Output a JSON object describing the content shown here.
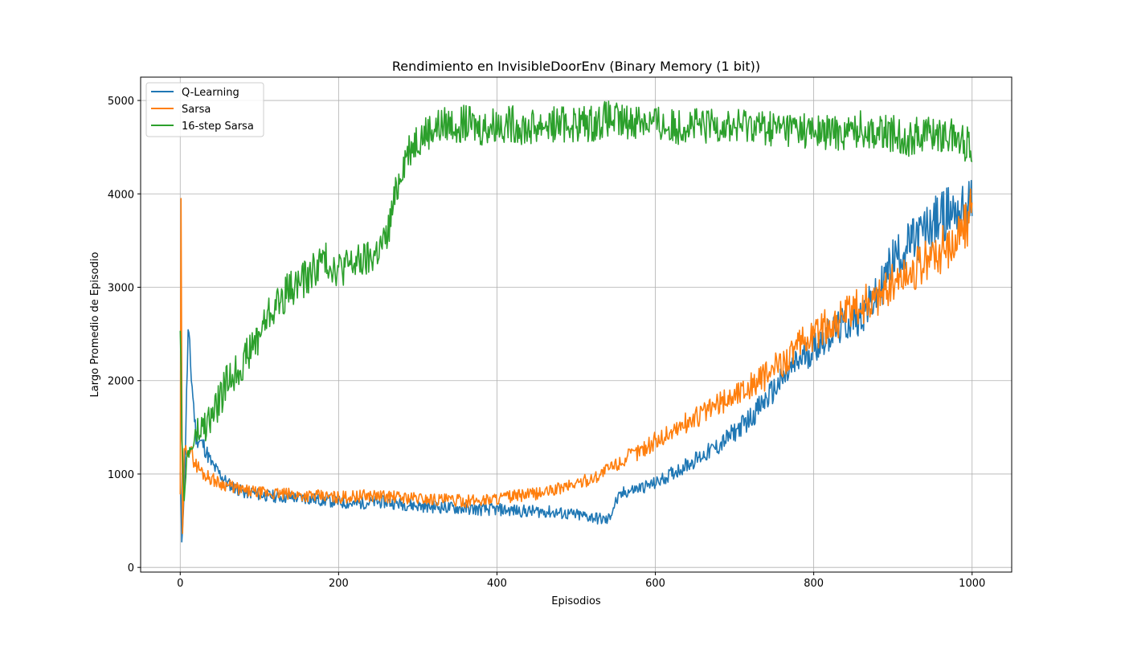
{
  "chart_data": {
    "type": "line",
    "title": "Rendimiento en InvisibleDoorEnv (Binary Memory (1 bit))",
    "xlabel": "Episodios",
    "ylabel": "Largo Promedio de Episodio",
    "xlim": [
      -50,
      1050
    ],
    "ylim": [
      -50,
      5250
    ],
    "x_ticks": [
      0,
      200,
      400,
      600,
      800,
      1000
    ],
    "y_ticks": [
      0,
      1000,
      2000,
      3000,
      4000,
      5000
    ],
    "x_tick_labels": [
      "0",
      "200",
      "400",
      "600",
      "800",
      "1000"
    ],
    "y_tick_labels": [
      "0",
      "1000",
      "2000",
      "3000",
      "4000",
      "5000"
    ],
    "grid": true,
    "legend_position": "top-left",
    "series": [
      {
        "name": "Q-Learning",
        "color": "#1f77b4",
        "x": [
          0,
          2,
          5,
          10,
          20,
          30,
          40,
          50,
          60,
          70,
          80,
          90,
          100,
          120,
          140,
          160,
          180,
          200,
          220,
          240,
          260,
          280,
          300,
          320,
          340,
          360,
          380,
          400,
          420,
          440,
          460,
          480,
          500,
          520,
          540,
          550,
          560,
          580,
          600,
          620,
          640,
          660,
          680,
          700,
          720,
          740,
          760,
          780,
          800,
          820,
          840,
          860,
          880,
          890,
          900,
          920,
          940,
          960,
          970,
          980,
          990,
          1000
        ],
        "values": [
          1000,
          300,
          800,
          2500,
          1400,
          1300,
          1100,
          1000,
          900,
          850,
          800,
          800,
          780,
          760,
          750,
          740,
          720,
          700,
          680,
          700,
          700,
          680,
          660,
          650,
          640,
          630,
          620,
          620,
          610,
          600,
          600,
          580,
          560,
          540,
          500,
          700,
          800,
          850,
          900,
          1000,
          1100,
          1200,
          1300,
          1450,
          1600,
          1800,
          2000,
          2200,
          2350,
          2500,
          2600,
          2700,
          2900,
          3100,
          3300,
          3450,
          3600,
          3750,
          3800,
          3850,
          3800,
          3900
        ]
      },
      {
        "name": "Sarsa",
        "color": "#ff7f0e",
        "x": [
          0,
          1,
          3,
          5,
          10,
          20,
          30,
          40,
          50,
          60,
          70,
          80,
          100,
          120,
          140,
          160,
          180,
          200,
          220,
          240,
          260,
          280,
          300,
          320,
          340,
          360,
          380,
          400,
          420,
          440,
          460,
          480,
          500,
          520,
          540,
          560,
          580,
          600,
          620,
          640,
          660,
          680,
          700,
          720,
          740,
          760,
          780,
          800,
          820,
          840,
          860,
          880,
          900,
          920,
          940,
          960,
          980,
          1000
        ],
        "values": [
          800,
          3700,
          300,
          1200,
          1300,
          1100,
          1000,
          950,
          900,
          880,
          850,
          820,
          800,
          790,
          780,
          770,
          760,
          750,
          760,
          770,
          760,
          750,
          740,
          730,
          720,
          710,
          720,
          740,
          760,
          780,
          800,
          850,
          900,
          950,
          1050,
          1150,
          1250,
          1350,
          1450,
          1550,
          1650,
          1750,
          1850,
          1950,
          2050,
          2200,
          2350,
          2500,
          2600,
          2700,
          2800,
          2900,
          3050,
          3150,
          3250,
          3400,
          3500,
          3800
        ]
      },
      {
        "name": "16-step Sarsa",
        "color": "#2ca02c",
        "x": [
          0,
          2,
          5,
          10,
          20,
          30,
          40,
          50,
          60,
          70,
          80,
          90,
          100,
          110,
          120,
          140,
          160,
          180,
          200,
          220,
          240,
          250,
          260,
          270,
          280,
          290,
          300,
          320,
          340,
          360,
          380,
          400,
          420,
          440,
          460,
          480,
          500,
          520,
          540,
          560,
          580,
          600,
          620,
          640,
          660,
          680,
          700,
          720,
          740,
          760,
          780,
          800,
          820,
          840,
          860,
          880,
          900,
          920,
          940,
          960,
          980,
          1000
        ],
        "values": [
          2700,
          1200,
          900,
          1200,
          1400,
          1500,
          1600,
          1800,
          2000,
          2100,
          2200,
          2350,
          2500,
          2700,
          2800,
          3000,
          3100,
          3300,
          3200,
          3250,
          3300,
          3400,
          3500,
          3900,
          4300,
          4500,
          4600,
          4700,
          4750,
          4750,
          4700,
          4750,
          4750,
          4700,
          4750,
          4750,
          4750,
          4750,
          4800,
          4750,
          4800,
          4750,
          4700,
          4750,
          4700,
          4750,
          4700,
          4750,
          4700,
          4700,
          4700,
          4650,
          4650,
          4650,
          4700,
          4650,
          4650,
          4600,
          4650,
          4650,
          4600,
          4500
        ]
      }
    ]
  }
}
